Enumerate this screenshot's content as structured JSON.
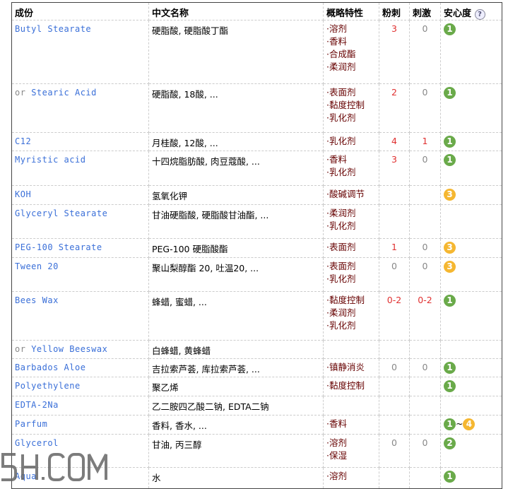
{
  "headers": {
    "ingredient": "成份",
    "chinese": "中文名称",
    "properties": "概略特性",
    "acne": "粉刺",
    "irritation": "刺激",
    "safety": "安心度",
    "help": "?"
  },
  "rows": [
    {
      "or": "",
      "name": "Butyl Stearate",
      "cn": "硬脂酸, 硬脂酸丁酯",
      "props": [
        "·溶剂",
        "·香料",
        "·合成酯",
        "·柔润剂"
      ],
      "acne": "3",
      "irr": "0",
      "safety": [
        "1"
      ],
      "h": 85
    },
    {
      "or": "or ",
      "name": "Stearic Acid",
      "cn": "硬脂酸, 18酸, ...",
      "props": [
        "·表面剂",
        "·黏度控制",
        "·乳化剂"
      ],
      "acne": "2",
      "irr": "0",
      "safety": [
        "1"
      ],
      "h": 64
    },
    {
      "or": "",
      "name": "C12",
      "cn": "月桂酸, 12酸, ...",
      "props": [
        "·乳化剂"
      ],
      "acne": "4",
      "irr": "1",
      "safety": [
        "1"
      ],
      "h": 21
    },
    {
      "or": "",
      "name": "Myristic acid",
      "cn": "十四烷脂肪酸, 肉豆蔻酸, ...",
      "props": [
        "·香料",
        "·乳化剂"
      ],
      "acne": "3",
      "irr": "0",
      "safety": [
        "1"
      ],
      "h": 44
    },
    {
      "or": "",
      "name": "KOH",
      "cn": "氢氧化钾",
      "props": [
        "·酸碱调节"
      ],
      "acne": "",
      "irr": "",
      "safety": [
        "3"
      ],
      "h": 22
    },
    {
      "or": "",
      "name": "Glyceryl Stearate",
      "cn": "甘油硬脂酸, 硬脂酸甘油酯, ...",
      "props": [
        "·柔润剂",
        "·乳化剂"
      ],
      "acne": "",
      "irr": "",
      "safety": [],
      "h": 43
    },
    {
      "or": "",
      "name": "PEG-100 Stearate",
      "cn": "PEG-100 硬脂酸酯",
      "props": [
        "·表面剂"
      ],
      "acne": "1",
      "irr": "0",
      "safety": [
        "3"
      ],
      "h": 22
    },
    {
      "or": "",
      "name": "Tween 20",
      "cn": "聚山梨醇酯 20, 吐温20, ...",
      "props": [
        "·表面剂",
        "·乳化剂"
      ],
      "acne": "0",
      "irr": "0",
      "safety": [
        "3"
      ],
      "h": 43
    },
    {
      "or": "",
      "name": "Bees Wax",
      "cn": "蜂蜡, 蜜蜡, ...",
      "props": [
        "·黏度控制",
        "·柔润剂",
        "·乳化剂"
      ],
      "acne": "0-2",
      "irr": "0-2",
      "safety": [
        "1"
      ],
      "h": 64
    },
    {
      "or": "or ",
      "name": "Yellow Beeswax",
      "cn": "白蜂蜡, 黄蜂蜡",
      "props": [],
      "acne": "",
      "irr": "",
      "safety": [],
      "h": 21
    },
    {
      "or": "",
      "name": "Barbados Aloe",
      "cn": "吉拉索芦荟, 库拉索芦荟, ...",
      "props": [
        "·镇静消炎"
      ],
      "acne": "0",
      "irr": "0",
      "safety": [
        "1"
      ],
      "h": 21
    },
    {
      "or": "",
      "name": "Polyethylene",
      "cn": "聚乙烯",
      "props": [
        "·黏度控制"
      ],
      "acne": "",
      "irr": "",
      "safety": [
        "1"
      ],
      "h": 22
    },
    {
      "or": "",
      "name": "EDTA-2Na",
      "cn": "乙二胺四乙酸二钠, EDTA二钠",
      "props": [],
      "acne": "",
      "irr": "",
      "safety": [],
      "h": 22
    },
    {
      "or": "",
      "name": "Parfum",
      "cn": "香料, 香水, ...",
      "props": [
        "·香料"
      ],
      "acne": "",
      "irr": "",
      "safety": [
        "1",
        "~",
        "4"
      ],
      "h": 22
    },
    {
      "or": "",
      "name": "Glycerol",
      "cn": "甘油, 丙三醇",
      "props": [
        "·溶剂",
        "·保湿"
      ],
      "acne": "0",
      "irr": "0",
      "safety": [
        "2"
      ],
      "h": 42
    },
    {
      "or": "",
      "name": "Aqua",
      "cn": "水",
      "props": [
        "·溶剂"
      ],
      "acne": "",
      "irr": "",
      "safety": [
        "1"
      ],
      "h": 25
    }
  ],
  "colors": {
    "green": "#6aaa4a",
    "orange": "#f5b731",
    "link": "#3a6fd8",
    "prop": "#660000",
    "red": "#e03030"
  },
  "watermark": "5H.COM"
}
